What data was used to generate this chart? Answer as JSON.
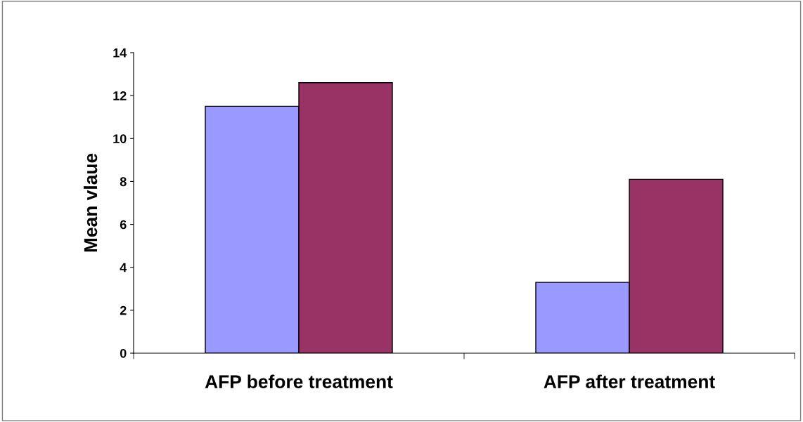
{
  "chart_data": {
    "type": "bar",
    "ylabel": "Mean vlaue",
    "categories": [
      "AFP before treatment",
      "AFP after treatment"
    ],
    "series": [
      {
        "color": "#9999ff",
        "values": [
          11.5,
          3.3
        ]
      },
      {
        "color": "#993366",
        "values": [
          12.6,
          8.1
        ]
      }
    ],
    "ylim": [
      0,
      14
    ],
    "yticks": [
      0,
      2,
      4,
      6,
      8,
      10,
      12,
      14
    ],
    "grid": false,
    "legend": false
  }
}
